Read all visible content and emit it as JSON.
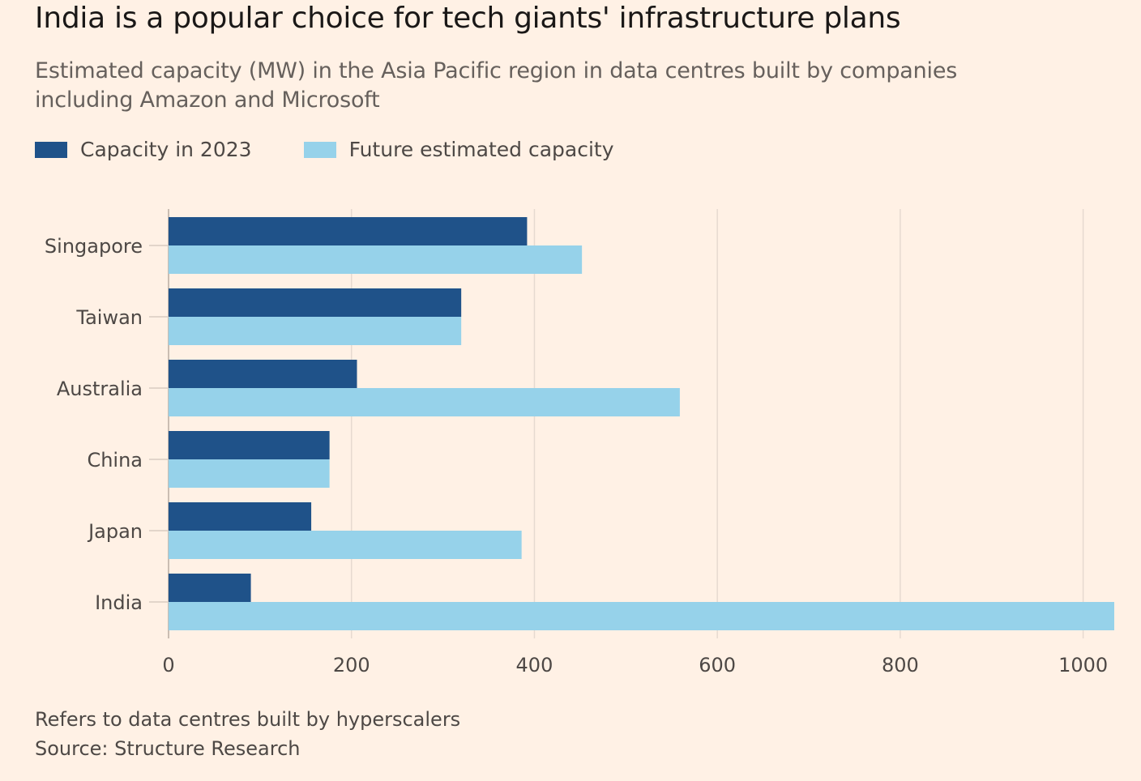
{
  "header": {
    "title": "India is a popular choice for tech giants' infrastructure plans",
    "subtitle": "Estimated capacity (MW) in the Asia Pacific region in data centres built by companies including Amazon and Microsoft"
  },
  "legend": {
    "items": [
      {
        "label": "Capacity in 2023",
        "color": "#1f5289"
      },
      {
        "label": "Future estimated capacity",
        "color": "#96d2ea"
      }
    ]
  },
  "chart_data": {
    "type": "bar",
    "orientation": "horizontal",
    "categories": [
      "Singapore",
      "Taiwan",
      "Australia",
      "China",
      "Japan",
      "India"
    ],
    "series": [
      {
        "name": "Capacity in 2023",
        "color": "#1f5289",
        "values": [
          392,
          320,
          206,
          176,
          156,
          90
        ]
      },
      {
        "name": "Future estimated capacity",
        "color": "#96d2ea",
        "values": [
          452,
          320,
          559,
          176,
          386,
          1034
        ]
      }
    ],
    "xlim": [
      0,
      1034
    ],
    "xticks": [
      0,
      200,
      400,
      600,
      800,
      1000
    ],
    "grid": true,
    "legend_position": "top-left"
  },
  "footer": {
    "note": "Refers to data centres built by hyperscalers",
    "source": "Source: Structure Research"
  }
}
